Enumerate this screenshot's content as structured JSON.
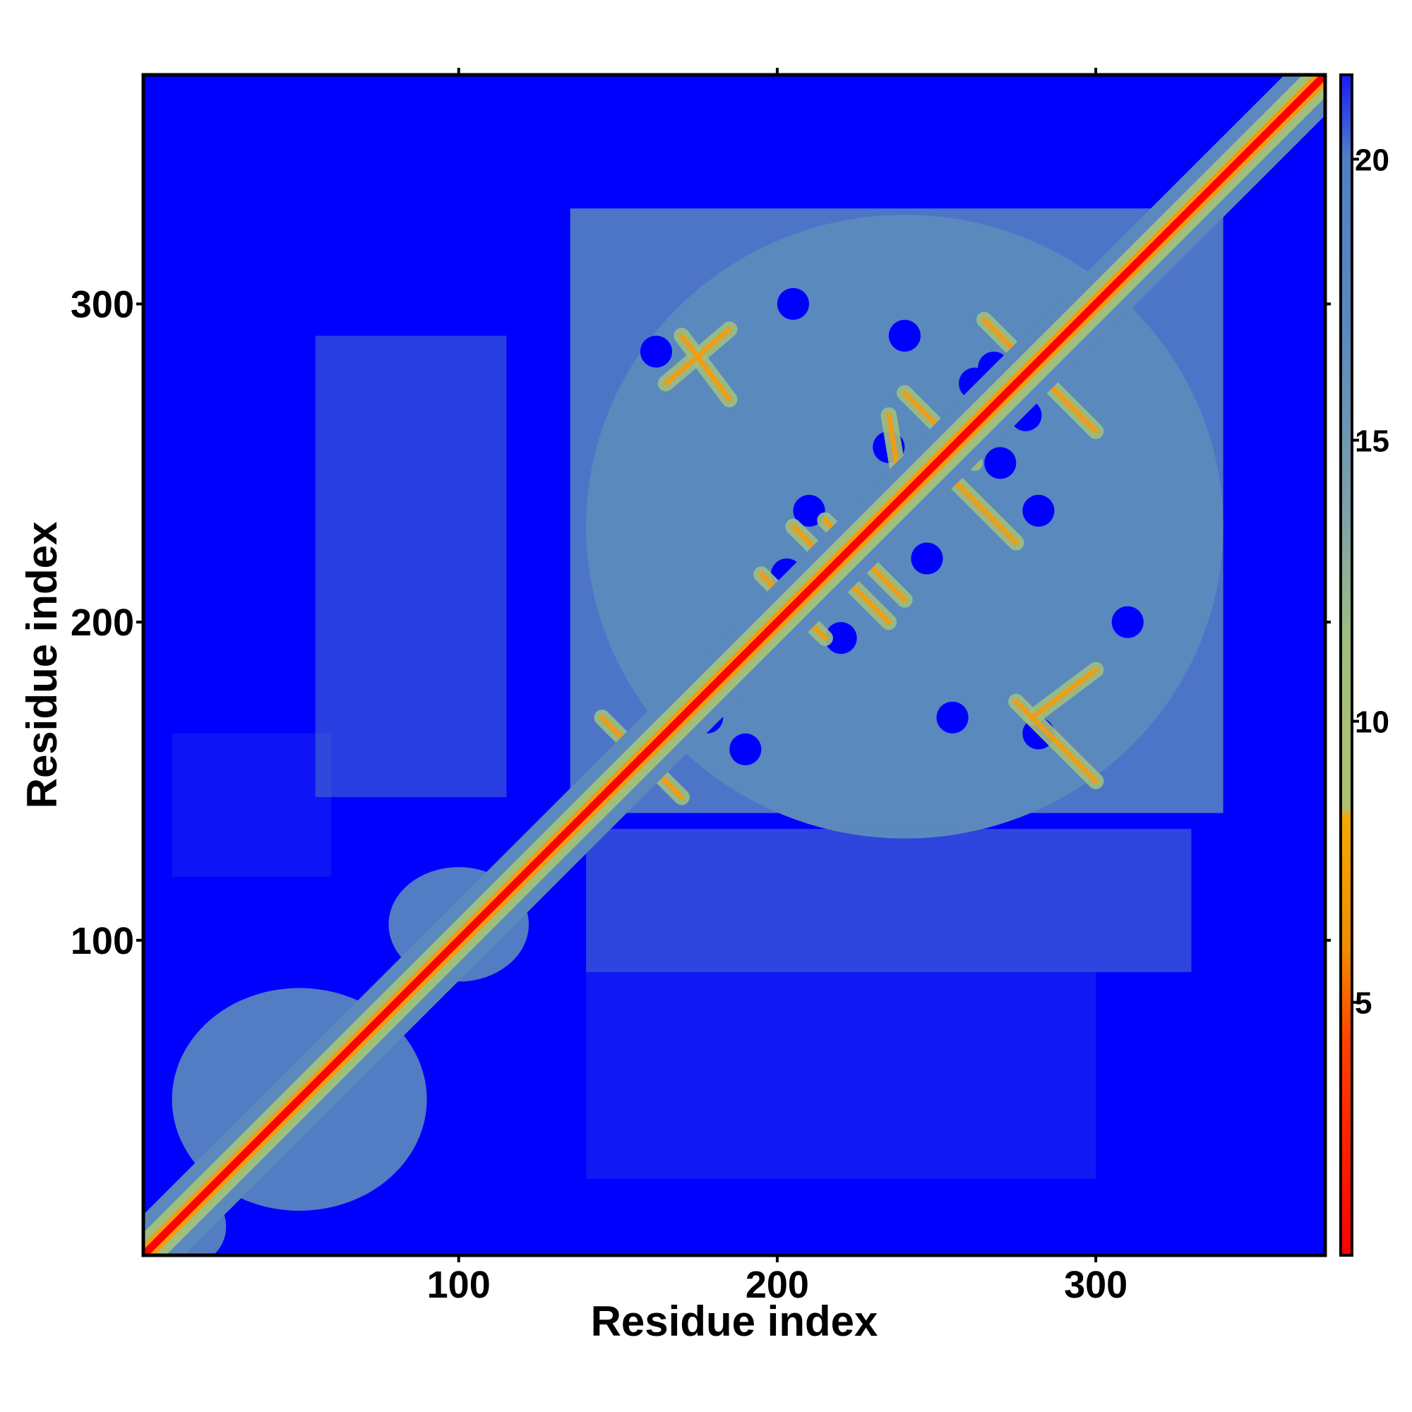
{
  "chart_data": {
    "type": "heatmap",
    "title": "",
    "xlabel": "Residue index",
    "ylabel": "Residue index",
    "xlim": [
      1,
      372
    ],
    "ylim": [
      1,
      372
    ],
    "x_ticks": [
      100,
      200,
      300
    ],
    "y_ticks": [
      100,
      200,
      300
    ],
    "x_tick_labels": [
      "100",
      "200",
      "300"
    ],
    "y_tick_labels": [
      "100",
      "200",
      "300"
    ],
    "grid": false,
    "colorbar": {
      "range": [
        0.5,
        21.5
      ],
      "ticks": [
        5,
        10,
        15,
        20
      ],
      "tick_labels": [
        "5",
        "10",
        "15",
        "20"
      ],
      "placement": "right"
    },
    "colors": {
      "background": "#0000ff",
      "intermediate": "#5b89bd",
      "near": "#9fbf7f",
      "close": "#f39c12",
      "contact": "#ff0000"
    },
    "description_values": {
      "diagonal_distance": 0,
      "cutoff": 21
    }
  }
}
